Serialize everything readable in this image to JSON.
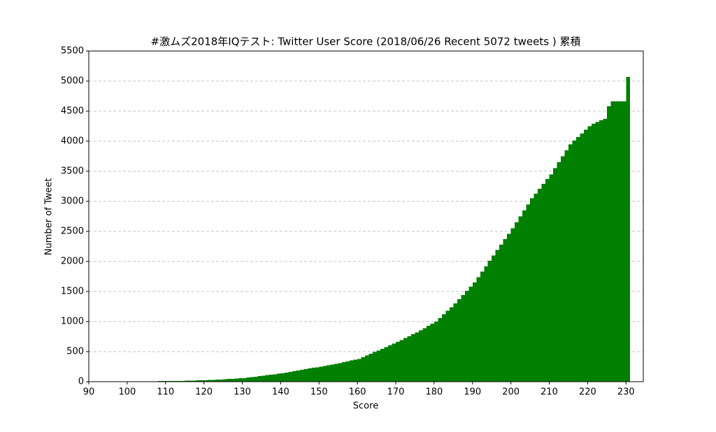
{
  "chart_data": {
    "type": "histogram",
    "title": "#激ムズ2018年IQテスト: Twitter User Score (2018/06/26 Recent 5072 tweets ) 累積",
    "xlabel": "Score",
    "ylabel": "Number of Tweet",
    "color": "#008000",
    "grid": true,
    "bins": [
      90,
      91,
      92,
      93,
      94,
      95,
      96,
      97,
      98,
      99,
      100,
      101,
      102,
      103,
      104,
      105,
      106,
      107,
      108,
      109,
      110,
      111,
      112,
      113,
      114,
      115,
      116,
      117,
      118,
      119,
      120,
      121,
      122,
      123,
      124,
      125,
      126,
      127,
      128,
      129,
      130,
      131,
      132,
      133,
      134,
      135,
      136,
      137,
      138,
      139,
      140,
      141,
      142,
      143,
      144,
      145,
      146,
      147,
      148,
      149,
      150,
      151,
      152,
      153,
      154,
      155,
      156,
      157,
      158,
      159,
      160,
      161,
      162,
      163,
      164,
      165,
      166,
      167,
      168,
      169,
      170,
      171,
      172,
      173,
      174,
      175,
      176,
      177,
      178,
      179,
      180,
      181,
      182,
      183,
      184,
      185,
      186,
      187,
      188,
      189,
      190,
      191,
      192,
      193,
      194,
      195,
      196,
      197,
      198,
      199,
      200,
      201,
      202,
      203,
      204,
      205,
      206,
      207,
      208,
      209,
      210,
      211,
      212,
      213,
      214,
      215,
      216,
      217,
      218,
      219,
      220,
      221,
      222,
      223,
      224,
      225,
      226,
      227,
      228,
      229,
      230,
      231
    ],
    "counts": [
      0,
      0,
      0,
      0,
      0,
      0,
      0,
      0,
      0,
      0,
      0,
      0,
      3,
      5,
      6,
      7,
      8,
      8,
      9,
      10,
      10,
      11,
      12,
      13,
      14,
      15,
      17,
      19,
      21,
      23,
      25,
      28,
      31,
      34,
      37,
      40,
      44,
      48,
      52,
      56,
      60,
      68,
      76,
      84,
      92,
      100,
      108,
      116,
      124,
      132,
      140,
      152,
      164,
      176,
      188,
      200,
      210,
      220,
      230,
      240,
      250,
      262,
      274,
      286,
      298,
      310,
      324,
      338,
      352,
      366,
      380,
      408,
      436,
      464,
      492,
      520,
      548,
      576,
      604,
      632,
      660,
      692,
      724,
      756,
      788,
      820,
      856,
      892,
      928,
      964,
      1000,
      1060,
      1120,
      1180,
      1240,
      1300,
      1370,
      1440,
      1510,
      1580,
      1650,
      1740,
      1830,
      1920,
      2010,
      2100,
      2190,
      2280,
      2370,
      2460,
      2550,
      2650,
      2750,
      2850,
      2950,
      3050,
      3130,
      3210,
      3290,
      3370,
      3450,
      3550,
      3650,
      3750,
      3850,
      3950,
      4010,
      4070,
      4130,
      4190,
      4250,
      4290,
      4320,
      4350,
      4370,
      4580,
      4660,
      4660,
      4660,
      4660,
      5072
    ],
    "xlim": [
      90,
      234.5
    ],
    "ylim": [
      0,
      5500
    ],
    "xticks": [
      90,
      100,
      110,
      120,
      130,
      140,
      150,
      160,
      170,
      180,
      190,
      200,
      210,
      220,
      230
    ],
    "yticks": [
      0,
      500,
      1000,
      1500,
      2000,
      2500,
      3000,
      3500,
      4000,
      4500,
      5000,
      5500
    ]
  }
}
